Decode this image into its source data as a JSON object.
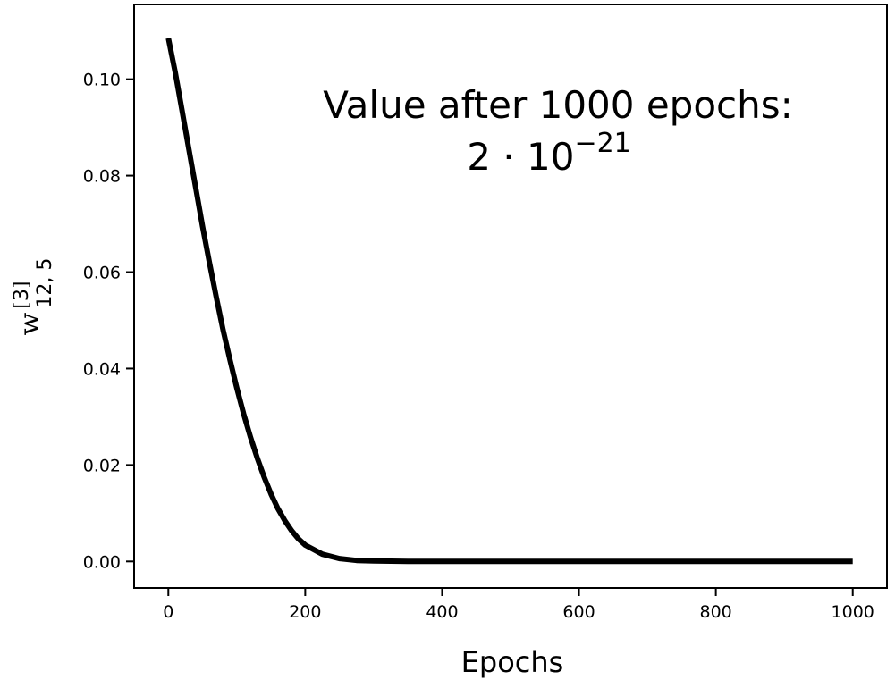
{
  "chart_data": {
    "type": "line",
    "title": "",
    "xlabel": "Epochs",
    "ylabel": {
      "base": "w",
      "superscript": "[3]",
      "subscript": "12, 5"
    },
    "xlim": [
      -50,
      1050
    ],
    "ylim": [
      -0.0055,
      0.1155
    ],
    "grid": false,
    "legend": "none",
    "x_ticks": [
      0,
      200,
      400,
      600,
      800,
      1000
    ],
    "x_tick_labels": [
      "0",
      "200",
      "400",
      "600",
      "800",
      "1000"
    ],
    "y_ticks": [
      0.0,
      0.02,
      0.04,
      0.06,
      0.08,
      0.1
    ],
    "y_tick_labels": [
      "0.00",
      "0.02",
      "0.04",
      "0.06",
      "0.08",
      "0.10"
    ],
    "series": [
      {
        "color": "#000000",
        "x": [
          0,
          10,
          20,
          30,
          40,
          50,
          60,
          70,
          80,
          90,
          100,
          110,
          120,
          130,
          140,
          150,
          160,
          170,
          180,
          190,
          200,
          225,
          250,
          275,
          300,
          350,
          400,
          500,
          600,
          700,
          800,
          900,
          1000
        ],
        "y": [
          0.1085,
          0.1015,
          0.0935,
          0.0855,
          0.0775,
          0.0695,
          0.062,
          0.0548,
          0.048,
          0.0418,
          0.036,
          0.0306,
          0.0258,
          0.0214,
          0.0175,
          0.014,
          0.011,
          0.0085,
          0.0064,
          0.0047,
          0.0034,
          0.0015,
          0.0006,
          0.0002,
          0.0001,
          0.0,
          0.0,
          0.0,
          0.0,
          0.0,
          0.0,
          0.0,
          0.0
        ]
      }
    ],
    "annotation": {
      "line1": "Value after 1000 epochs:",
      "coef": "2 · 10",
      "exponent": "−21"
    }
  }
}
